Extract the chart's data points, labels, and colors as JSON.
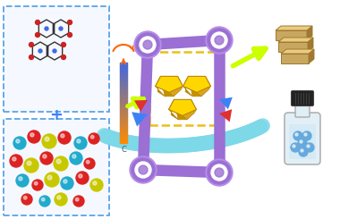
{
  "bg_color": "#ffffff",
  "fig_width": 3.8,
  "fig_height": 2.45,
  "dpi": 100,
  "purple": "#9B6FD4",
  "purple_light": "#B48EE8",
  "yellow_crystal": "#FFD700",
  "yellow_crystal_dark": "#B8860B",
  "yellow_crystal_mid": "#DAA520",
  "lime_arrow": "#CCFF00",
  "cyan_arrow": "#7DD8E8",
  "red_accent": "#E03030",
  "blue_accent": "#3B82F6",
  "box_bg": "#F5F9FF",
  "box_border": "#5BA3E8",
  "dashed_color": "#E8B800",
  "molecule_dark": "#333333",
  "molecule_blue": "#4169E1",
  "molecule_red": "#CC2222",
  "sphere_yellow": "#C8C800",
  "sphere_red": "#DD2222",
  "sphere_cyan": "#22AACC",
  "thermo_top": "#FF6600",
  "thermo_bot": "#4169E1",
  "gold_tan": "#C8A860",
  "gold_light": "#E8CC80",
  "gold_shadow": "#A07830",
  "bottle_glass": "#E0EEF5",
  "bottle_fill": "#D0E8F5",
  "bottle_cap": "#222222",
  "bottle_border": "#AAAAAA",
  "ion_blue": "#66AADD",
  "plus_color": "#3B82F6",
  "orange_arc": "#FF8C00",
  "white": "#FFFFFF"
}
